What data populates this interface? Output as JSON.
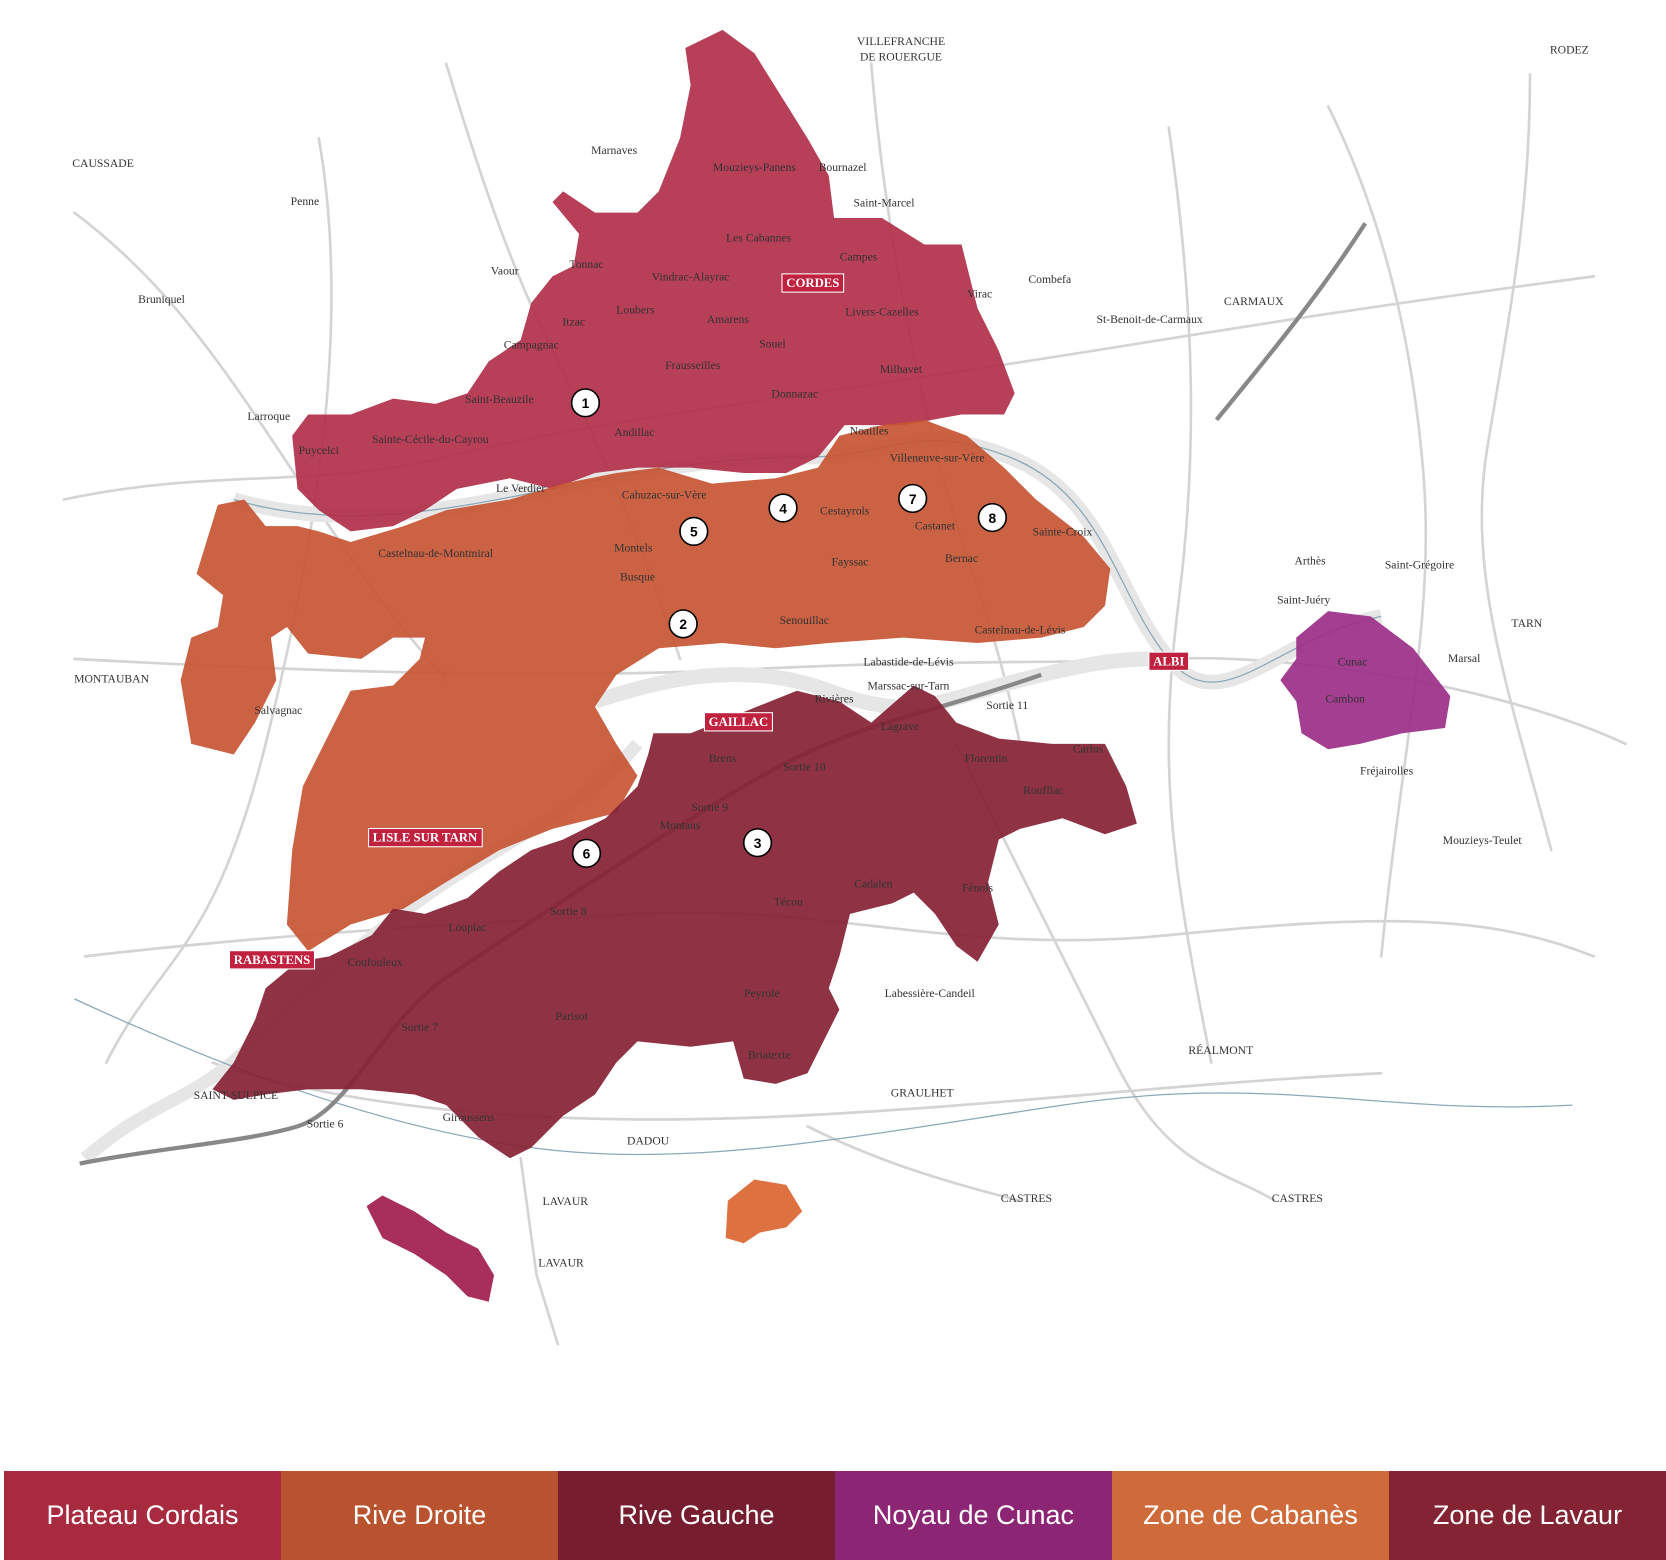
{
  "map": {
    "places": [
      "VILLEFRANCHE",
      "DE ROUERGUE",
      "RODEZ",
      "CAUSSADE",
      "Marnaves",
      "Mouzieys-Panens",
      "Bournazel",
      "Saint-Marcel",
      "Penne",
      "Les Cabannes",
      "Campes",
      "Vaour",
      "Tonnac",
      "Vindrac-Alayrac",
      "Virac",
      "Combefa",
      "Bruniquel",
      "Itzac",
      "Loubers",
      "Amarens",
      "Livers-Cazelles",
      "St-Benoit-de-Carmaux",
      "CARMAUX",
      "Campagnac",
      "Souel",
      "Frausseilles",
      "Milhavet",
      "Donnazac",
      "Saint-Beauzile",
      "Larroque",
      "Andillac",
      "Sainte-Cécile-du-Cayrou",
      "Puycelci",
      "Villeneuve-sur-Vère",
      "Noailles",
      "Cahuzac-sur-Vère",
      "Le Verdier",
      "Cestayrols",
      "Castanet",
      "Sainte-Croix",
      "Castelnau-de-Montmiral",
      "Montels",
      "Arthès",
      "Saint-Grégoire",
      "Busque",
      "Fayssac",
      "Bernac",
      "Senouillac",
      "Labastide-de-Lévis",
      "Saint-Juéry",
      "TARN",
      "Marsal",
      "Castelnau-de-Lévis",
      "MONTAUBAN",
      "Cunac",
      "Cambon",
      "Rivières",
      "Marssac-sur-Tarn",
      "Salvagnac",
      "Sortie 11",
      "Lagrave",
      "Fréjairolles",
      "Carlus",
      "Florentin",
      "Rouffiac",
      "Brens",
      "Sortie 10",
      "Sortie 9",
      "Montans",
      "Técou",
      "Cadalen",
      "Fénols",
      "Mouzieys-Teulet",
      "Sortie 8",
      "Loupiac",
      "Coufouleux",
      "Labessière-Candeil",
      "Peyrole",
      "Parisot",
      "Sortie 7",
      "Briatexte",
      "RÉALMONT",
      "GRAULHET",
      "SAINT-SULPICE",
      "Giroussens",
      "Sortie 6",
      "DADOU",
      "CASTRES",
      "CASTRES",
      "LAVAUR",
      "LAVAUR"
    ],
    "badges": [
      "CORDES",
      "ALBI",
      "GAILLAC",
      "LISLE SUR TARN",
      "RABASTENS"
    ],
    "markers": [
      "1",
      "2",
      "3",
      "4",
      "5",
      "6",
      "7",
      "8"
    ]
  },
  "tabs": [
    "Plateau Cordais",
    "Rive Droite",
    "Rive Gauche",
    "Noyau de Cunac",
    "Zone de Cabanès",
    "Zone de Lavaur"
  ]
}
